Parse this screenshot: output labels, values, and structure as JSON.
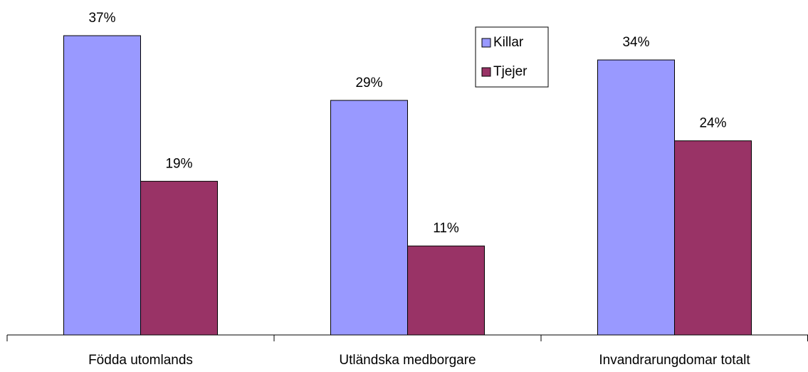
{
  "chart_data": {
    "type": "bar",
    "categories": [
      "Födda utomlands",
      "Utländska medborgare",
      "Invandrarungdomar totalt"
    ],
    "series": [
      {
        "name": "Killar",
        "color": "#9999ff",
        "values": [
          37,
          29,
          34
        ],
        "value_labels": [
          "37%",
          "29%",
          "34%"
        ]
      },
      {
        "name": "Tjejer",
        "color": "#993366",
        "values": [
          19,
          11,
          24
        ],
        "value_labels": [
          "19%",
          "11%",
          "24%"
        ]
      }
    ],
    "ylim": [
      0,
      40
    ]
  }
}
